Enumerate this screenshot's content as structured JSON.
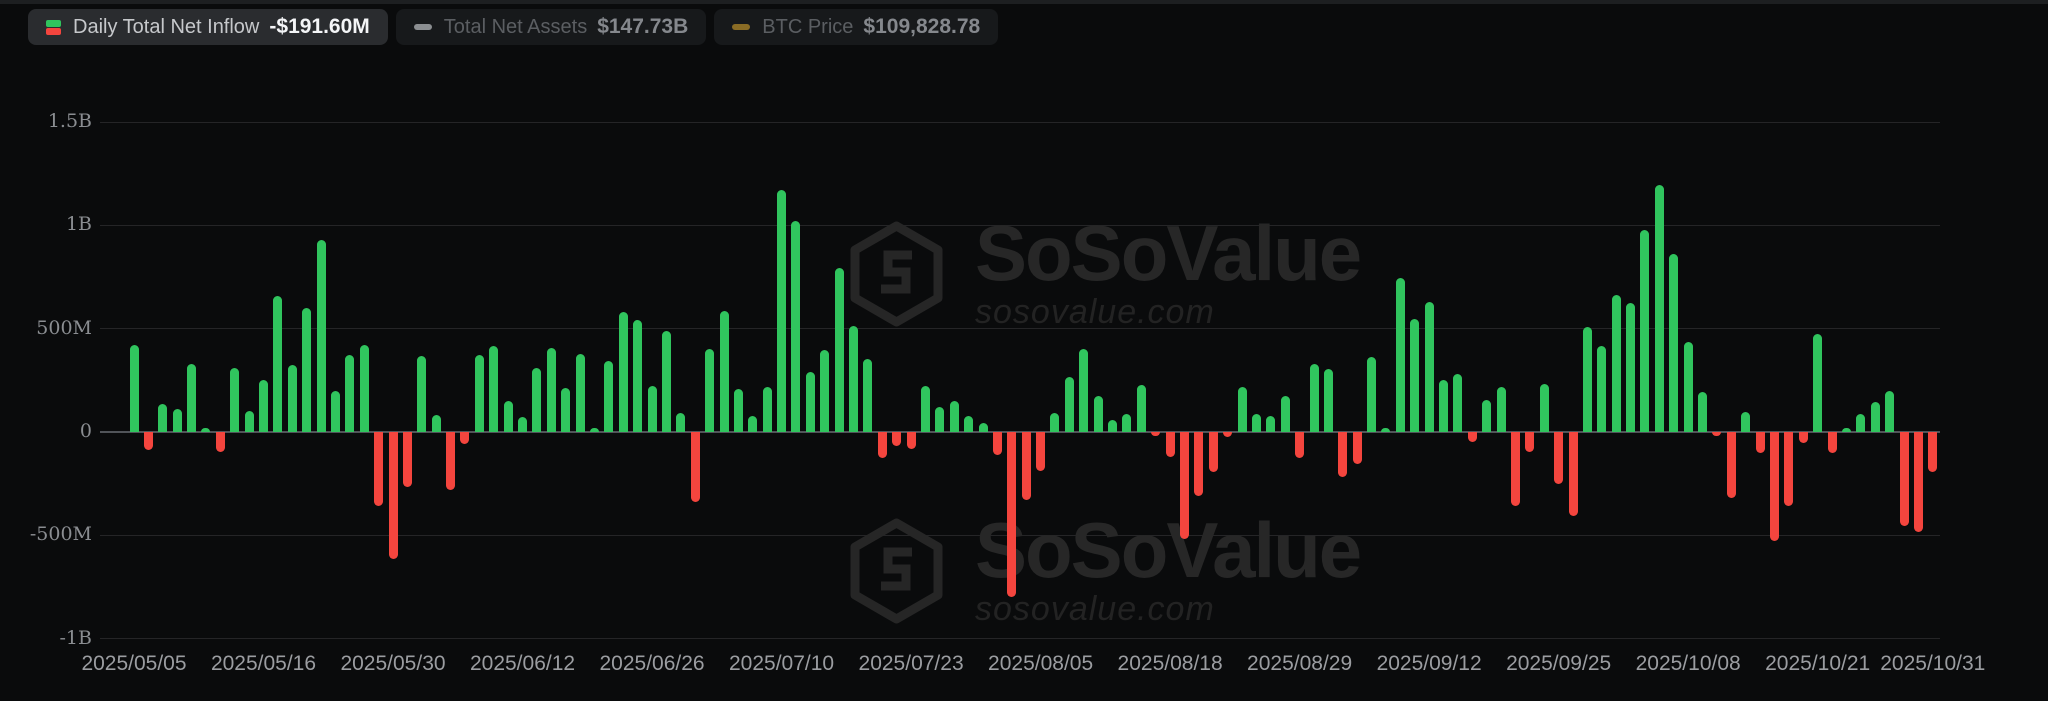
{
  "legend": {
    "items": [
      {
        "label": "Daily Total Net Inflow",
        "value": "-$191.60M",
        "icon": "green-red-candle",
        "active": true
      },
      {
        "label": "Total Net Assets",
        "value": "$147.73B",
        "icon": "gray-dash",
        "active": false
      },
      {
        "label": "BTC Price",
        "value": "$109,828.78",
        "icon": "gold-dash",
        "active": false
      }
    ]
  },
  "watermark": {
    "title": "SoSoValue",
    "subtitle": "sosovalue.com"
  },
  "chart_data": {
    "type": "bar",
    "title": "Daily Total Net Inflow",
    "unit": "USD millions",
    "legend_position": "top",
    "grid": true,
    "ylim": [
      -1000,
      1500
    ],
    "positive_color": "#30c55e",
    "negative_color": "#f4453e",
    "yticks": [
      {
        "value": 1500,
        "label": "1.5B"
      },
      {
        "value": 1000,
        "label": "1B"
      },
      {
        "value": 500,
        "label": "500M"
      },
      {
        "value": 0,
        "label": "0"
      },
      {
        "value": -500,
        "label": "-500M"
      },
      {
        "value": -1000,
        "label": "-1B"
      }
    ],
    "xticks": [
      {
        "index": 0,
        "label": "2025/05/05"
      },
      {
        "index": 9,
        "label": "2025/05/16"
      },
      {
        "index": 18,
        "label": "2025/05/30"
      },
      {
        "index": 27,
        "label": "2025/06/12"
      },
      {
        "index": 36,
        "label": "2025/06/26"
      },
      {
        "index": 45,
        "label": "2025/07/10"
      },
      {
        "index": 54,
        "label": "2025/07/23"
      },
      {
        "index": 63,
        "label": "2025/08/05"
      },
      {
        "index": 72,
        "label": "2025/08/18"
      },
      {
        "index": 81,
        "label": "2025/08/29"
      },
      {
        "index": 90,
        "label": "2025/09/12"
      },
      {
        "index": 99,
        "label": "2025/09/25"
      },
      {
        "index": 108,
        "label": "2025/10/08"
      },
      {
        "index": 117,
        "label": "2025/10/21"
      },
      {
        "index": 125,
        "label": "2025/10/31"
      }
    ],
    "values_musd": [
      422,
      -87,
      134,
      109,
      330,
      9,
      -99,
      308,
      102,
      250,
      660,
      322,
      598,
      928,
      200,
      375,
      423,
      -359,
      -616,
      -265,
      366,
      80,
      -280,
      -56,
      372,
      417,
      152,
      75,
      312,
      405,
      213,
      377,
      8,
      345,
      580,
      540,
      224,
      489,
      91,
      -341,
      400,
      588,
      208,
      77,
      218,
      1170,
      1022,
      288,
      397,
      795,
      513,
      354,
      -128,
      -67,
      -80,
      224,
      122,
      149,
      77,
      42,
      -112,
      -801,
      -327,
      -187,
      93,
      268,
      400,
      173,
      57,
      85,
      229,
      -11,
      -123,
      -519,
      -308,
      -192,
      -23,
      218,
      85,
      77,
      173,
      -128,
      329,
      304,
      -220,
      -155,
      362,
      16,
      745,
      545,
      630,
      253,
      282,
      -48,
      154,
      216,
      -356,
      -96,
      232,
      -252,
      -407,
      510,
      417,
      662,
      622,
      978,
      1194,
      862,
      438,
      192,
      -15,
      -321,
      96,
      -103,
      -529,
      -359,
      -51,
      473,
      -103,
      16,
      85,
      144,
      197,
      -455,
      -482,
      -191.6
    ]
  }
}
